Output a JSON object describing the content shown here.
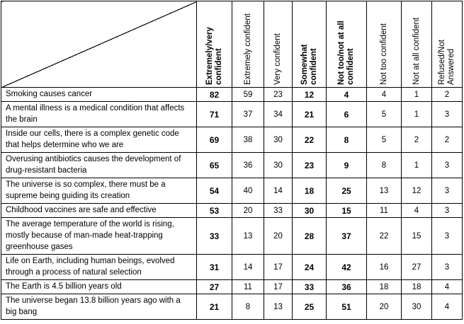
{
  "columns": [
    {
      "label": "Extremely/very confident",
      "bold": true
    },
    {
      "label": "Extremely confident",
      "bold": false
    },
    {
      "label": "Very confident",
      "bold": false
    },
    {
      "label": "Somewhat confident",
      "bold": true
    },
    {
      "label": "Not too/not at all confident",
      "bold": true
    },
    {
      "label": "Not too confident",
      "bold": false
    },
    {
      "label": "Not at all confident",
      "bold": false
    },
    {
      "label": "Refused/Not Answered",
      "bold": false
    }
  ],
  "rows": [
    {
      "statement": "Smoking causes cancer",
      "values": [
        "82",
        "59",
        "23",
        "12",
        "4",
        "4",
        "1",
        "2"
      ]
    },
    {
      "statement": "A mental illness is a medical condition that affects the brain",
      "values": [
        "71",
        "37",
        "34",
        "21",
        "6",
        "5",
        "1",
        "3"
      ]
    },
    {
      "statement": "Inside our cells, there is a complex genetic code that helps determine who we are",
      "values": [
        "69",
        "38",
        "30",
        "22",
        "8",
        "5",
        "2",
        "2"
      ]
    },
    {
      "statement": "Overusing antibiotics causes the development of drug-resistant bacteria",
      "values": [
        "65",
        "36",
        "30",
        "23",
        "9",
        "8",
        "1",
        "3"
      ]
    },
    {
      "statement": "The universe is so complex, there must be a supreme being guiding its creation",
      "values": [
        "54",
        "40",
        "14",
        "18",
        "25",
        "13",
        "12",
        "3"
      ]
    },
    {
      "statement": "Childhood vaccines are safe and effective",
      "values": [
        "53",
        "20",
        "33",
        "30",
        "15",
        "11",
        "4",
        "3"
      ]
    },
    {
      "statement": "The average temperature of the world is rising, mostly because of man-made heat-trapping greenhouse gases",
      "values": [
        "33",
        "13",
        "20",
        "28",
        "37",
        "22",
        "15",
        "3"
      ]
    },
    {
      "statement": "Life on Earth, including human beings, evolved through a process of natural selection",
      "values": [
        "31",
        "14",
        "17",
        "24",
        "42",
        "16",
        "27",
        "3"
      ]
    },
    {
      "statement": "The Earth is 4.5 billion years old",
      "values": [
        "27",
        "11",
        "17",
        "33",
        "36",
        "18",
        "18",
        "4"
      ]
    },
    {
      "statement": "The universe began 13.8 billion years ago with a big bang",
      "values": [
        "21",
        "8",
        "13",
        "25",
        "51",
        "20",
        "30",
        "4"
      ]
    }
  ]
}
